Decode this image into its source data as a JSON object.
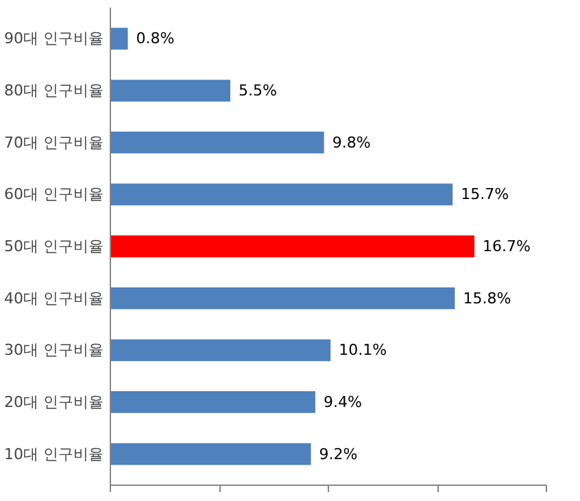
{
  "chart_data": {
    "type": "bar",
    "orientation": "horizontal",
    "categories": [
      "90대 인구비율",
      "80대 인구비율",
      "70대 인구비율",
      "60대 인구비율",
      "50대 인구비율",
      "40대 인구비율",
      "30대 인구비율",
      "20대 인구비율",
      "10대 인구비율"
    ],
    "values": [
      0.8,
      5.5,
      9.8,
      15.7,
      16.7,
      15.8,
      10.1,
      9.4,
      9.2
    ],
    "value_labels": [
      "0.8%",
      "5.5%",
      "9.8%",
      "15.7%",
      "16.7%",
      "15.8%",
      "10.1%",
      "9.4%",
      "9.2%"
    ],
    "colors": [
      "#4f81bd",
      "#4f81bd",
      "#4f81bd",
      "#4f81bd",
      "#ff0000",
      "#4f81bd",
      "#4f81bd",
      "#4f81bd",
      "#4f81bd"
    ],
    "xlim": [
      0,
      20
    ],
    "xticks": [
      {
        "value": 0,
        "label": null
      },
      {
        "value": 5,
        "label": null
      },
      {
        "value": 10,
        "label": null
      },
      {
        "value": 15,
        "label": null
      },
      {
        "value": 20,
        "label": null
      }
    ],
    "tick_labels": "y",
    "grid": false
  }
}
